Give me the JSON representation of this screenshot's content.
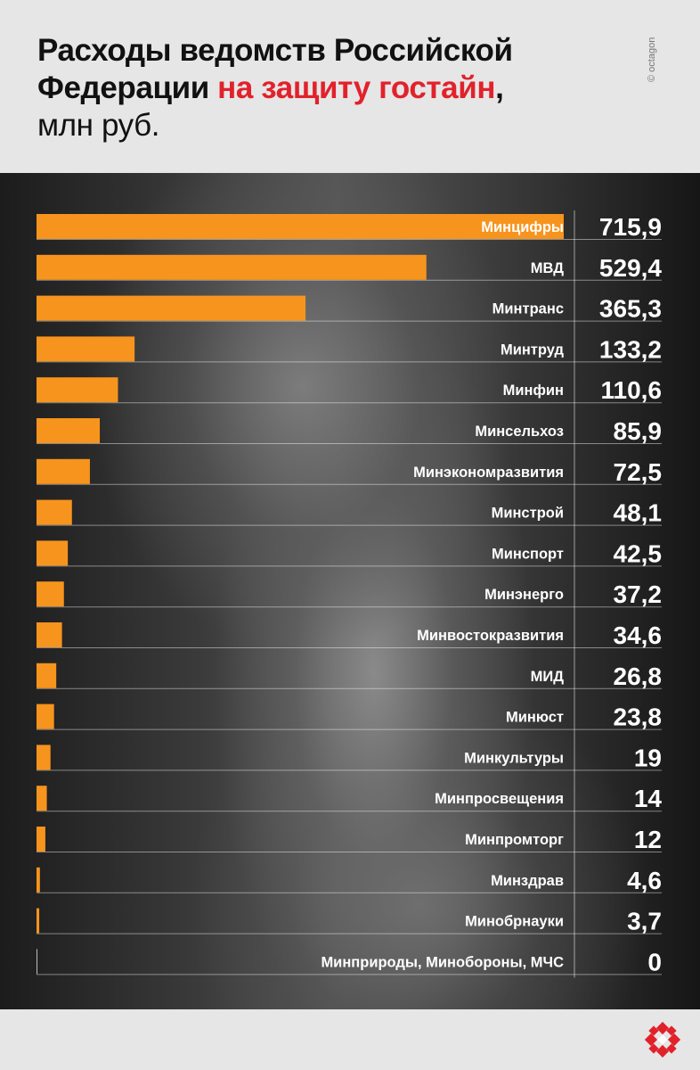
{
  "header": {
    "title_line1": "Расходы ведомств Российской",
    "title_line2_prefix": "Федерации ",
    "title_line2_highlight": "на защиту гостайн",
    "title_line2_suffix": ",",
    "title_line3": "млн руб.",
    "credit": "© octagon"
  },
  "colors": {
    "bar": "#f7941d",
    "highlight": "#e1222b",
    "text": "#ffffff"
  },
  "logo": {
    "icon": "octagon-logo-icon"
  },
  "chart_data": {
    "type": "bar",
    "orientation": "horizontal",
    "unit": "млн руб.",
    "categories": [
      "Минцифры",
      "МВД",
      "Минтранс",
      "Минтруд",
      "Минфин",
      "Минсельхоз",
      "Минэкономразвития",
      "Минстрой",
      "Минспорт",
      "Минэнерго",
      "Минвостокразвития",
      "МИД",
      "Минюст",
      "Минкультуры",
      "Минпросвещения",
      "Минпромторг",
      "Минздрав",
      "Минобрнауки",
      "Минприроды, Минобороны, МЧС"
    ],
    "values": [
      715.9,
      529.4,
      365.3,
      133.2,
      110.6,
      85.9,
      72.5,
      48.1,
      42.5,
      37.2,
      34.6,
      26.8,
      23.8,
      19,
      14,
      12,
      4.6,
      3.7,
      0
    ],
    "value_labels": [
      "715,9",
      "529,4",
      "365,3",
      "133,2",
      "110,6",
      "85,9",
      "72,5",
      "48,1",
      "42,5",
      "37,2",
      "34,6",
      "26,8",
      "23,8",
      "19",
      "14",
      "12",
      "4,6",
      "3,7",
      "0"
    ],
    "xlim": [
      0,
      715.9
    ]
  }
}
